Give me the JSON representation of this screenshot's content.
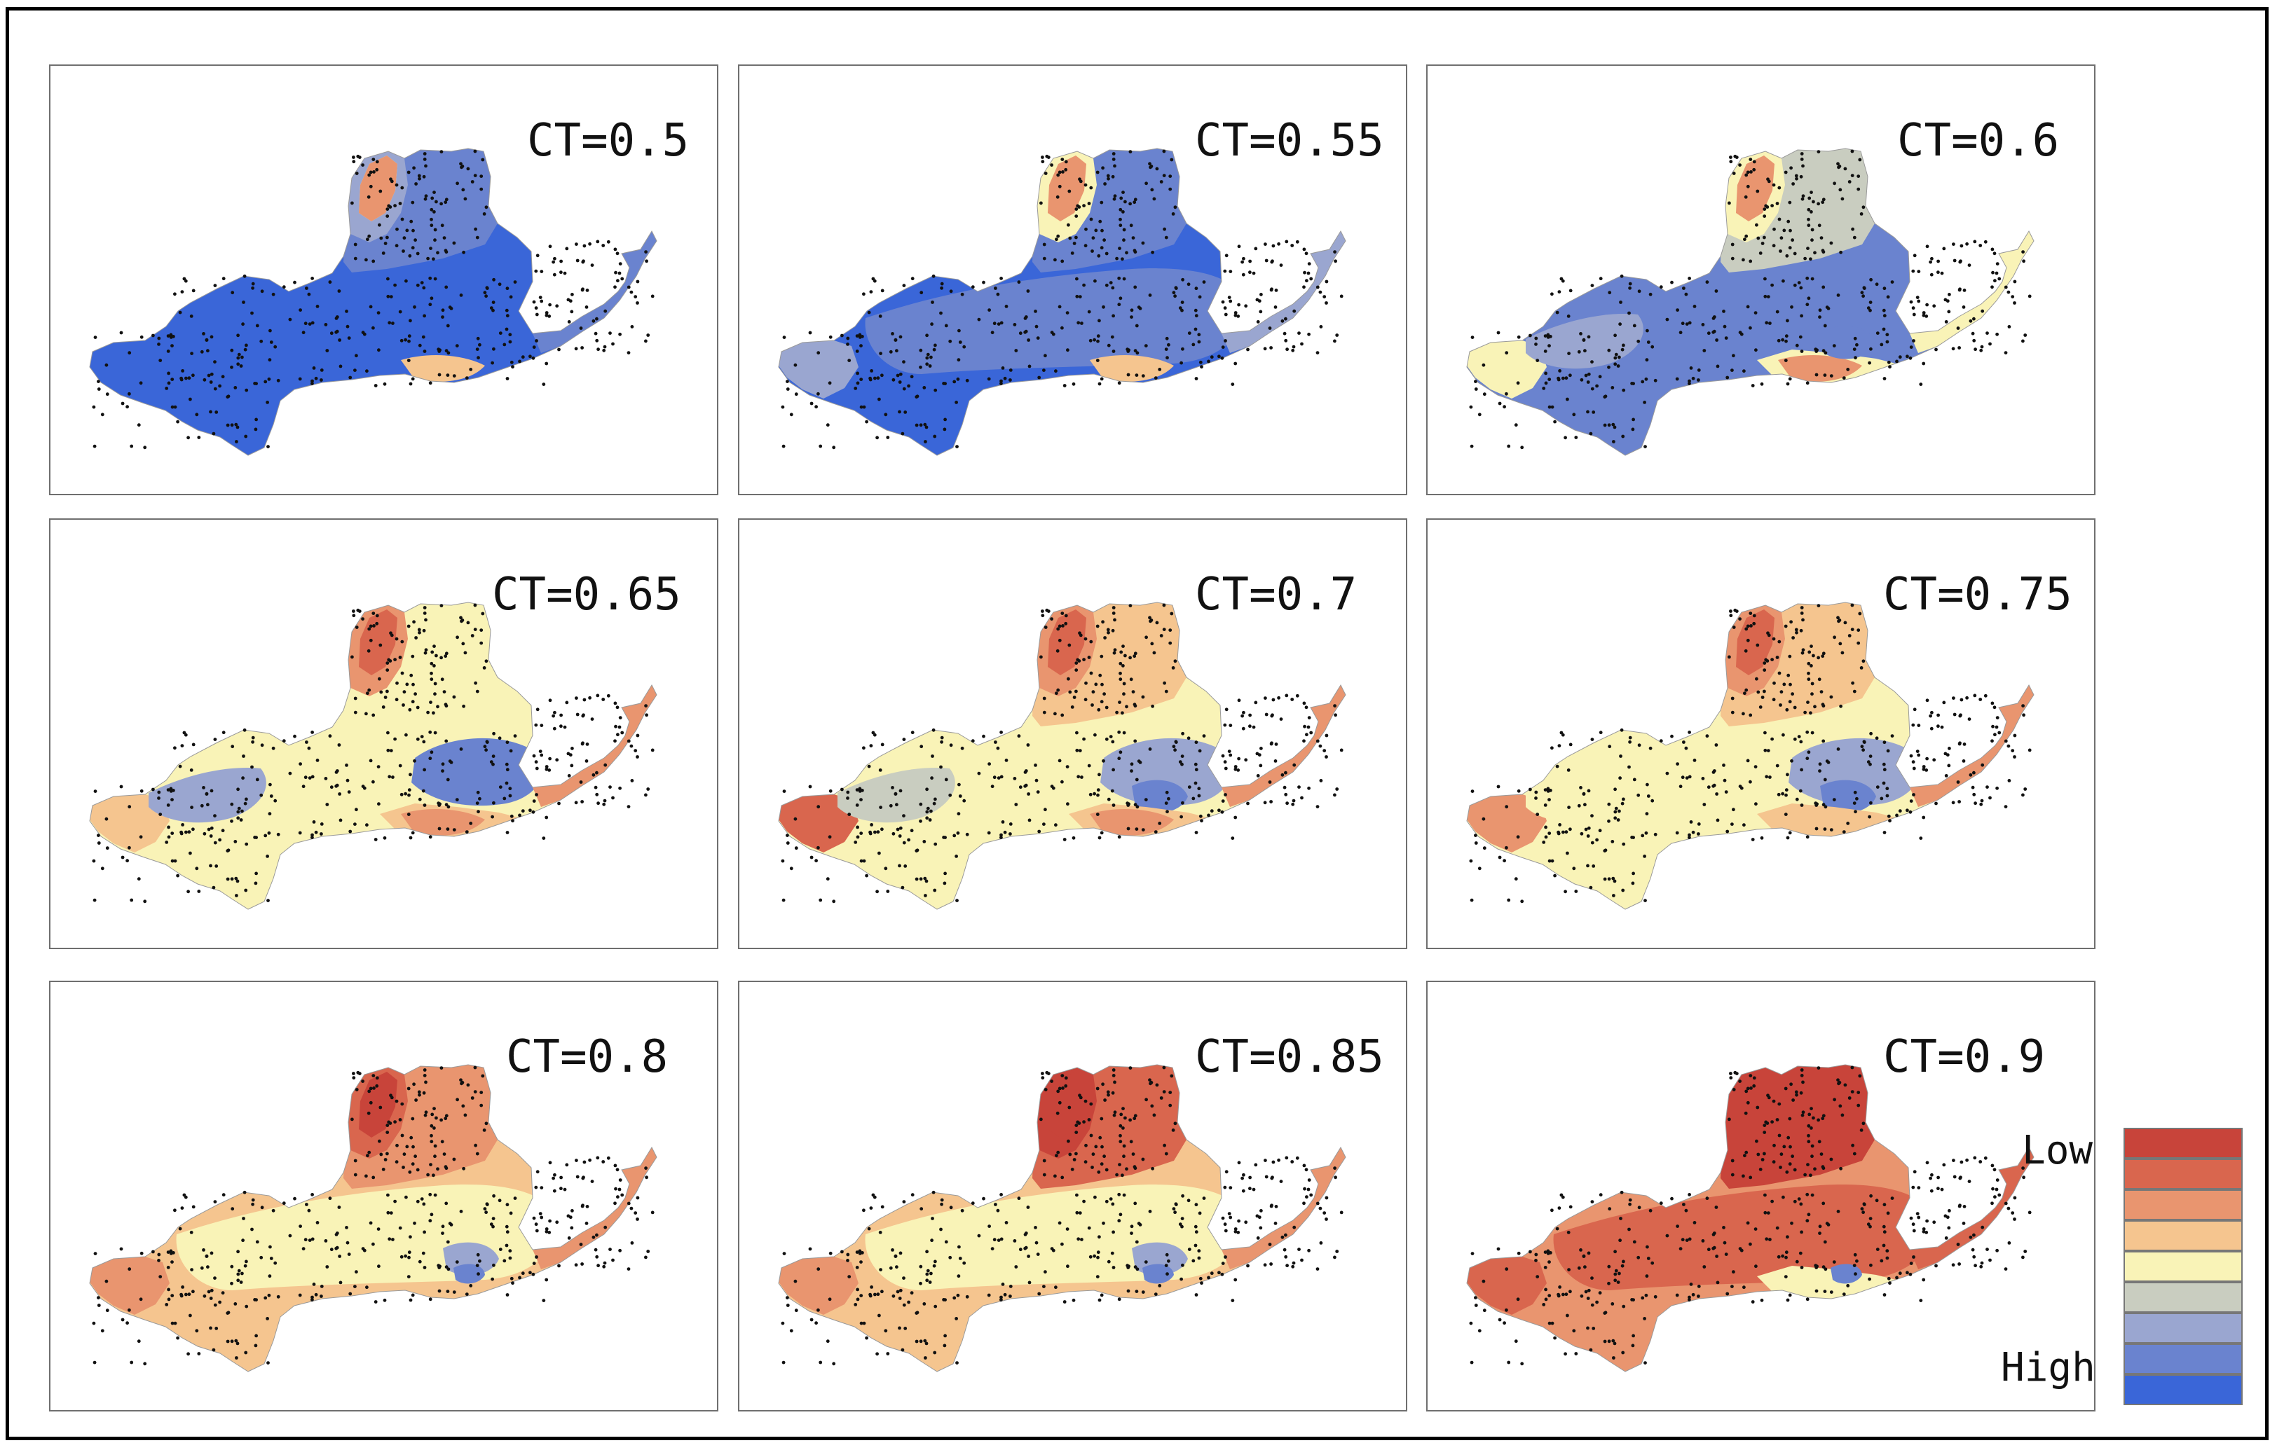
{
  "figure": {
    "panels": [
      {
        "label": "CT=0.5",
        "scheme": 0
      },
      {
        "label": "CT=0.55",
        "scheme": 1
      },
      {
        "label": "CT=0.6",
        "scheme": 2
      },
      {
        "label": "CT=0.65",
        "scheme": 3
      },
      {
        "label": "CT=0.7",
        "scheme": 4
      },
      {
        "label": "CT=0.75",
        "scheme": 5
      },
      {
        "label": "CT=0.8",
        "scheme": 6
      },
      {
        "label": "CT=0.85",
        "scheme": 7
      },
      {
        "label": "CT=0.9",
        "scheme": 8
      }
    ],
    "legend": {
      "low_label": "Low",
      "high_label": "High",
      "colors": [
        "#c8443a",
        "#d9664e",
        "#e9956f",
        "#f5c58f",
        "#f9f3b7",
        "#c9cdc0",
        "#9aa6d0",
        "#6a83cf",
        "#3a66d8"
      ]
    },
    "palette": {
      "red": "#c8443a",
      "red2": "#d9664e",
      "orange": "#e9956f",
      "tan": "#f5c58f",
      "yellow": "#f9f3b7",
      "grey": "#c9cdc0",
      "lightblue": "#9aa6d0",
      "blue": "#6a83cf",
      "deepblue": "#3a66d8"
    }
  }
}
